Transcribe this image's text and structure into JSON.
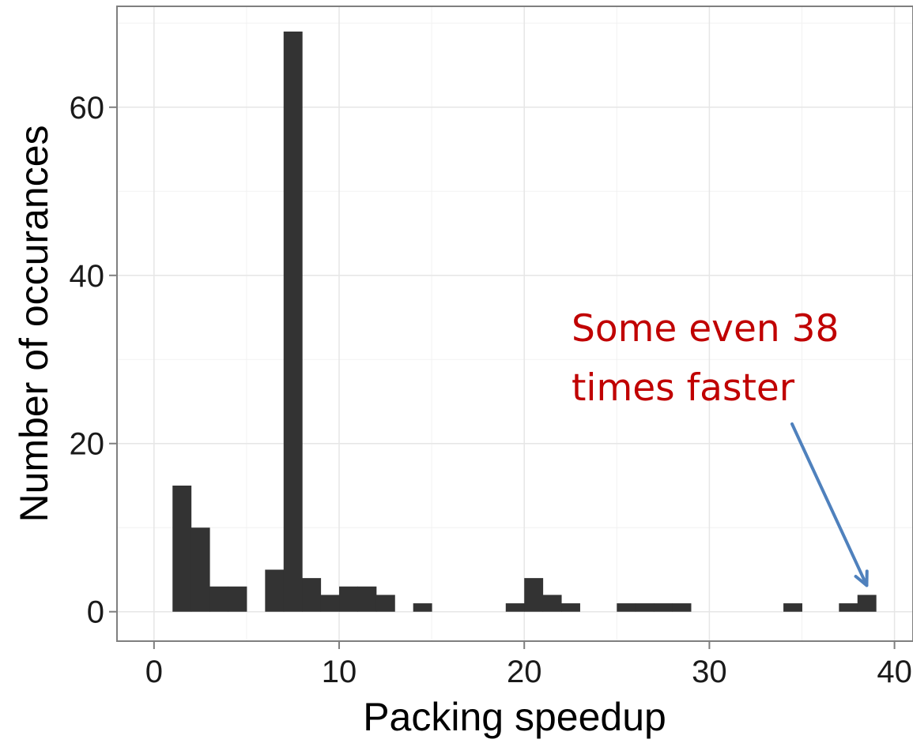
{
  "chart_data": {
    "type": "bar",
    "xlabel": "Packing speedup",
    "ylabel": "Number of occurances",
    "xlim": [
      -2,
      41
    ],
    "ylim": [
      -3.5,
      72
    ],
    "x_ticks": [
      0,
      10,
      20,
      30,
      40
    ],
    "y_ticks": [
      0,
      20,
      40,
      60
    ],
    "grid": true,
    "bin_width": 1,
    "bins": [
      {
        "x0": 1,
        "value": 15
      },
      {
        "x0": 2,
        "value": 10
      },
      {
        "x0": 3,
        "value": 3
      },
      {
        "x0": 4,
        "value": 3
      },
      {
        "x0": 6,
        "value": 5
      },
      {
        "x0": 7,
        "value": 69
      },
      {
        "x0": 8,
        "value": 4
      },
      {
        "x0": 9,
        "value": 2
      },
      {
        "x0": 10,
        "value": 3
      },
      {
        "x0": 11,
        "value": 3
      },
      {
        "x0": 12,
        "value": 2
      },
      {
        "x0": 14,
        "value": 1
      },
      {
        "x0": 19,
        "value": 1
      },
      {
        "x0": 20,
        "value": 4
      },
      {
        "x0": 21,
        "value": 2
      },
      {
        "x0": 22,
        "value": 1
      },
      {
        "x0": 25,
        "value": 1
      },
      {
        "x0": 26,
        "value": 1
      },
      {
        "x0": 27,
        "value": 1
      },
      {
        "x0": 28,
        "value": 1
      },
      {
        "x0": 34,
        "value": 1
      },
      {
        "x0": 37,
        "value": 1
      },
      {
        "x0": 38,
        "value": 2
      }
    ],
    "bar_color": "#333333",
    "annotation": {
      "lines": [
        "Some even 38",
        "times faster"
      ],
      "color": "#c00000",
      "arrow_color": "#4f81bd",
      "target_x": 38.5,
      "target_y": 2
    }
  }
}
